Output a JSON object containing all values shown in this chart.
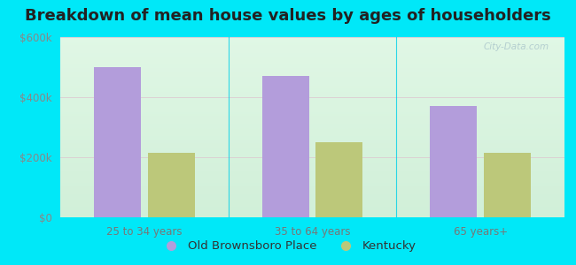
{
  "title": "Breakdown of mean house values by ages of householders",
  "categories": [
    "25 to 34 years",
    "35 to 64 years",
    "65 years+"
  ],
  "series": {
    "Old Brownsboro Place": [
      500000,
      470000,
      370000
    ],
    "Kentucky": [
      215000,
      250000,
      215000
    ]
  },
  "bar_colors": {
    "Old Brownsboro Place": "#b39ddb",
    "Kentucky": "#bcc87a"
  },
  "ylim": [
    0,
    600000
  ],
  "yticks": [
    0,
    200000,
    400000,
    600000
  ],
  "ytick_labels": [
    "$0",
    "$200k",
    "$400k",
    "$600k"
  ],
  "background_outer": "#00e8f8",
  "title_fontsize": 13,
  "tick_fontsize": 8.5,
  "legend_fontsize": 9.5,
  "bar_width": 0.28
}
